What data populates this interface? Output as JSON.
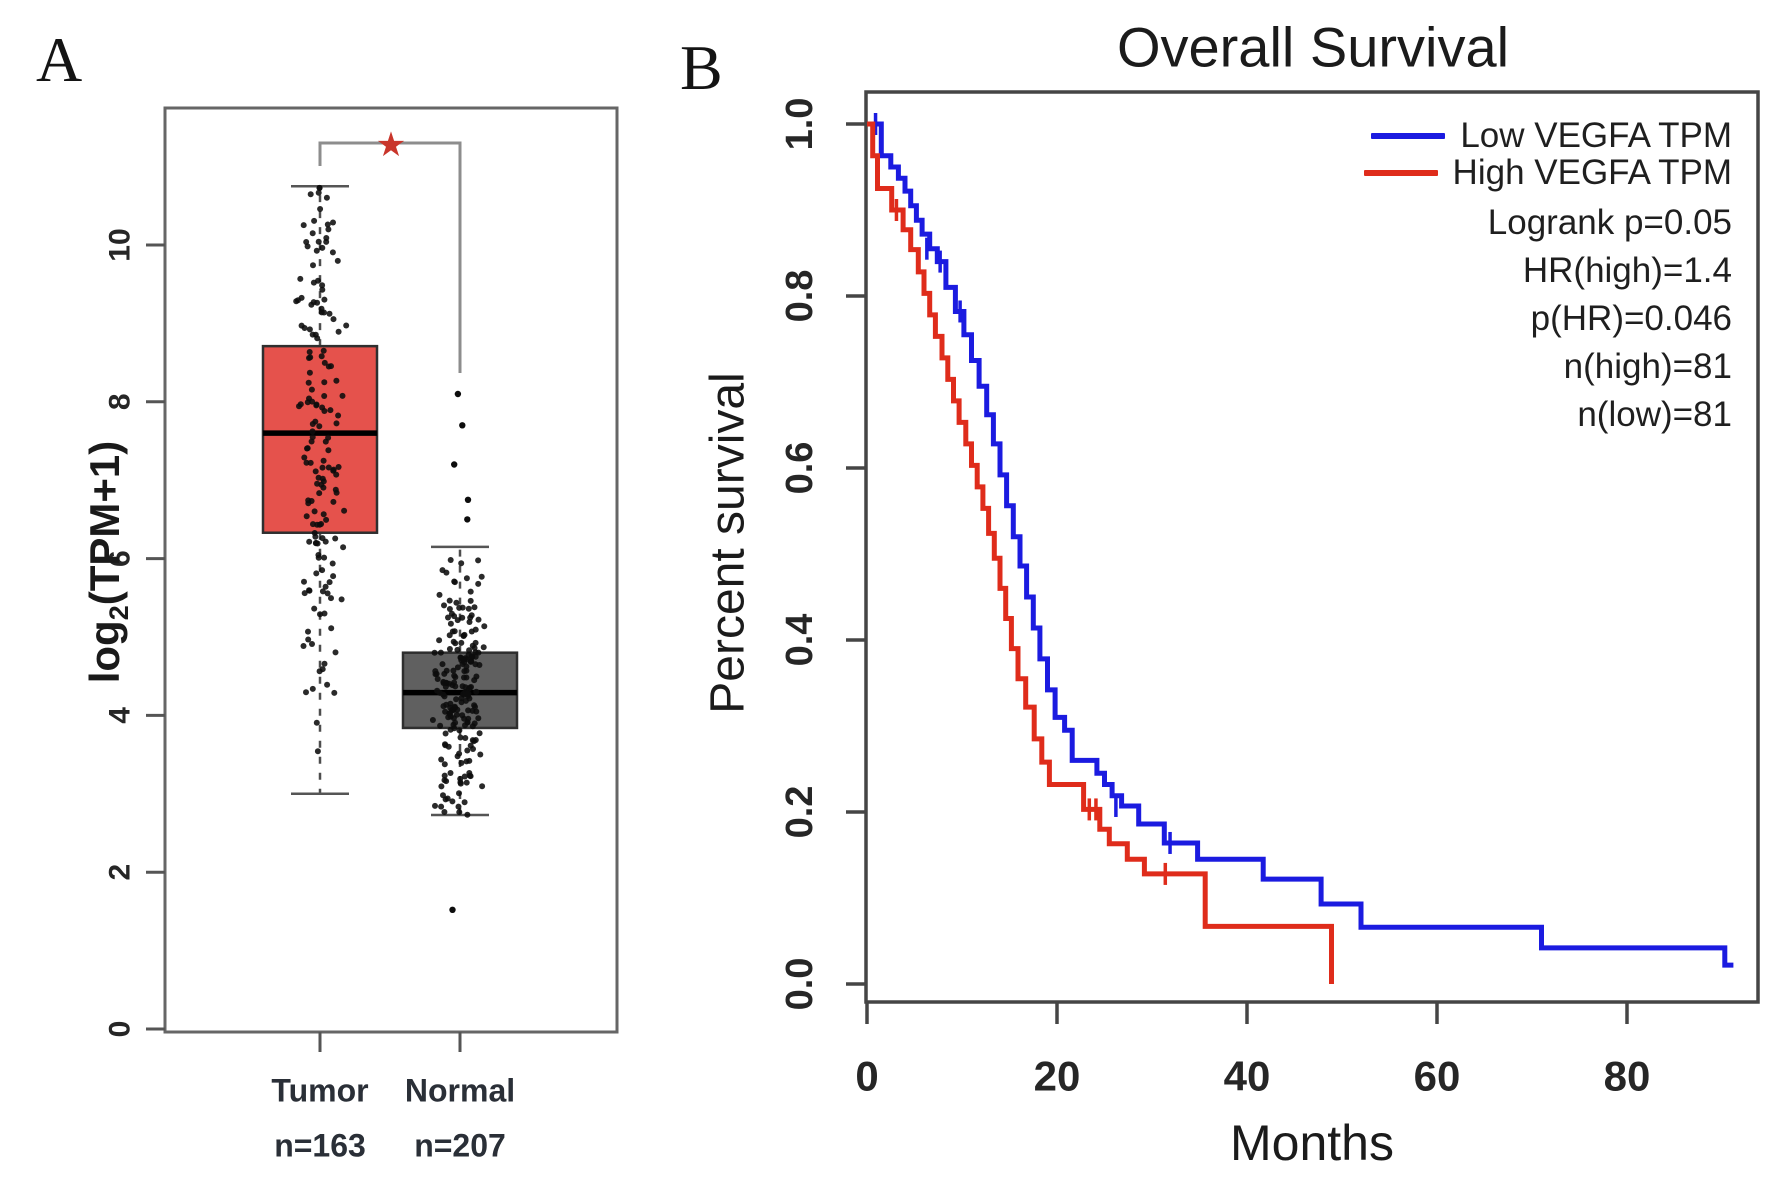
{
  "chart_data": [
    {
      "id": "expression-boxplot",
      "type": "box",
      "panel_label": "A",
      "ylabel": "log2(TPM+1)",
      "ylabel_parts": {
        "pre": "log",
        "sub": "2",
        "post": "(TPM+1)"
      },
      "ylim": [
        0,
        11.8
      ],
      "yticks": [
        0,
        2,
        4,
        6,
        8,
        10
      ],
      "categories": [
        "Tumor",
        "Normal"
      ],
      "n_labels": [
        "n=163",
        "n=207"
      ],
      "significance": "★",
      "significance_color": "#c9352b",
      "series": [
        {
          "name": "Tumor",
          "n": 163,
          "color": "#e5524c",
          "min": 3.0,
          "q1": 6.33,
          "median": 7.6,
          "q3": 8.71,
          "max": 10.75,
          "outliers": [],
          "spread": 3.3,
          "jitter_width": 27
        },
        {
          "name": "Normal",
          "n": 207,
          "color": "#606060",
          "min": 2.73,
          "q1": 3.84,
          "median": 4.29,
          "q3": 4.8,
          "max": 6.15,
          "outliers": [
            8.1,
            7.7,
            7.2,
            6.75,
            6.5,
            1.52
          ],
          "spread": 1.45,
          "jitter_width": 29
        }
      ]
    },
    {
      "id": "overall-survival-km",
      "type": "line",
      "panel_label": "B",
      "title": "Overall Survival",
      "xlabel": "Months",
      "ylabel": "Percent survival",
      "xlim": [
        0,
        94
      ],
      "ylim": [
        0,
        1.05
      ],
      "xticks": [
        0,
        20,
        40,
        60,
        80
      ],
      "yticks": [
        "0.0",
        "0.2",
        "0.4",
        "0.6",
        "0.8",
        "1.0"
      ],
      "grid": false,
      "legend_position": "top-right",
      "legend": [
        {
          "label": "Low VEGFA TPM",
          "color": "#1b1be0"
        },
        {
          "label": "High VEGFA TPM",
          "color": "#df2c1b"
        }
      ],
      "stats_lines": [
        "Logrank p=0.05",
        "HR(high)=1.4",
        "p(HR)=0.046",
        "n(high)=81",
        "n(low)=81"
      ],
      "series": [
        {
          "name": "Low VEGFA TPM",
          "color": "#1b1be0",
          "steps": [
            [
              0,
              1.0
            ],
            [
              1.5,
              0.963
            ],
            [
              2.5,
              0.95
            ],
            [
              3.3,
              0.937
            ],
            [
              4,
              0.922
            ],
            [
              4.6,
              0.905
            ],
            [
              5.2,
              0.888
            ],
            [
              5.8,
              0.872
            ],
            [
              6.6,
              0.855
            ],
            [
              7.4,
              0.84
            ],
            [
              8.3,
              0.81
            ],
            [
              9.3,
              0.782
            ],
            [
              10.2,
              0.755
            ],
            [
              11,
              0.725
            ],
            [
              11.8,
              0.695
            ],
            [
              12.6,
              0.662
            ],
            [
              13.3,
              0.628
            ],
            [
              14,
              0.592
            ],
            [
              14.7,
              0.556
            ],
            [
              15.4,
              0.52
            ],
            [
              16.1,
              0.486
            ],
            [
              16.8,
              0.45
            ],
            [
              17.5,
              0.414
            ],
            [
              18.2,
              0.378
            ],
            [
              19,
              0.342
            ],
            [
              19.8,
              0.31
            ],
            [
              20.8,
              0.295
            ],
            [
              21.6,
              0.26
            ],
            [
              24.2,
              0.245
            ],
            [
              25,
              0.232
            ],
            [
              25.8,
              0.219
            ],
            [
              26.8,
              0.207
            ],
            [
              28.6,
              0.186
            ],
            [
              31.3,
              0.164
            ],
            [
              34.8,
              0.145
            ],
            [
              41.7,
              0.122
            ],
            [
              47.8,
              0.093
            ],
            [
              52,
              0.066
            ],
            [
              71,
              0.042
            ],
            [
              90.3,
              0.022
            ],
            [
              91.2,
              0.022
            ]
          ],
          "censors": [
            [
              0.9,
              1.0
            ],
            [
              6.3,
              0.855
            ],
            [
              7.7,
              0.84
            ],
            [
              9.8,
              0.782
            ],
            [
              26.2,
              0.207
            ],
            [
              31.9,
              0.164
            ]
          ]
        },
        {
          "name": "High VEGFA TPM",
          "color": "#df2c1b",
          "steps": [
            [
              0,
              1.0
            ],
            [
              0.6,
              0.963
            ],
            [
              1.1,
              0.925
            ],
            [
              2.6,
              0.9
            ],
            [
              3.8,
              0.877
            ],
            [
              4.6,
              0.854
            ],
            [
              5.4,
              0.828
            ],
            [
              6,
              0.803
            ],
            [
              6.6,
              0.778
            ],
            [
              7.2,
              0.753
            ],
            [
              7.9,
              0.728
            ],
            [
              8.5,
              0.703
            ],
            [
              9.1,
              0.678
            ],
            [
              9.7,
              0.653
            ],
            [
              10.4,
              0.628
            ],
            [
              11,
              0.603
            ],
            [
              11.6,
              0.578
            ],
            [
              12.2,
              0.553
            ],
            [
              12.8,
              0.524
            ],
            [
              13.4,
              0.495
            ],
            [
              14,
              0.46
            ],
            [
              14.6,
              0.425
            ],
            [
              15.2,
              0.39
            ],
            [
              15.9,
              0.355
            ],
            [
              16.7,
              0.322
            ],
            [
              17.6,
              0.285
            ],
            [
              18.4,
              0.258
            ],
            [
              19.2,
              0.232
            ],
            [
              22.8,
              0.203
            ],
            [
              24.5,
              0.18
            ],
            [
              25.5,
              0.163
            ],
            [
              27.4,
              0.145
            ],
            [
              29.2,
              0.128
            ],
            [
              35.6,
              0.067
            ],
            [
              48.9,
              0.0
            ]
          ],
          "censors": [
            [
              3.1,
              0.9
            ],
            [
              23.4,
              0.203
            ],
            [
              24.1,
              0.203
            ],
            [
              31.4,
              0.128
            ]
          ]
        }
      ]
    }
  ]
}
